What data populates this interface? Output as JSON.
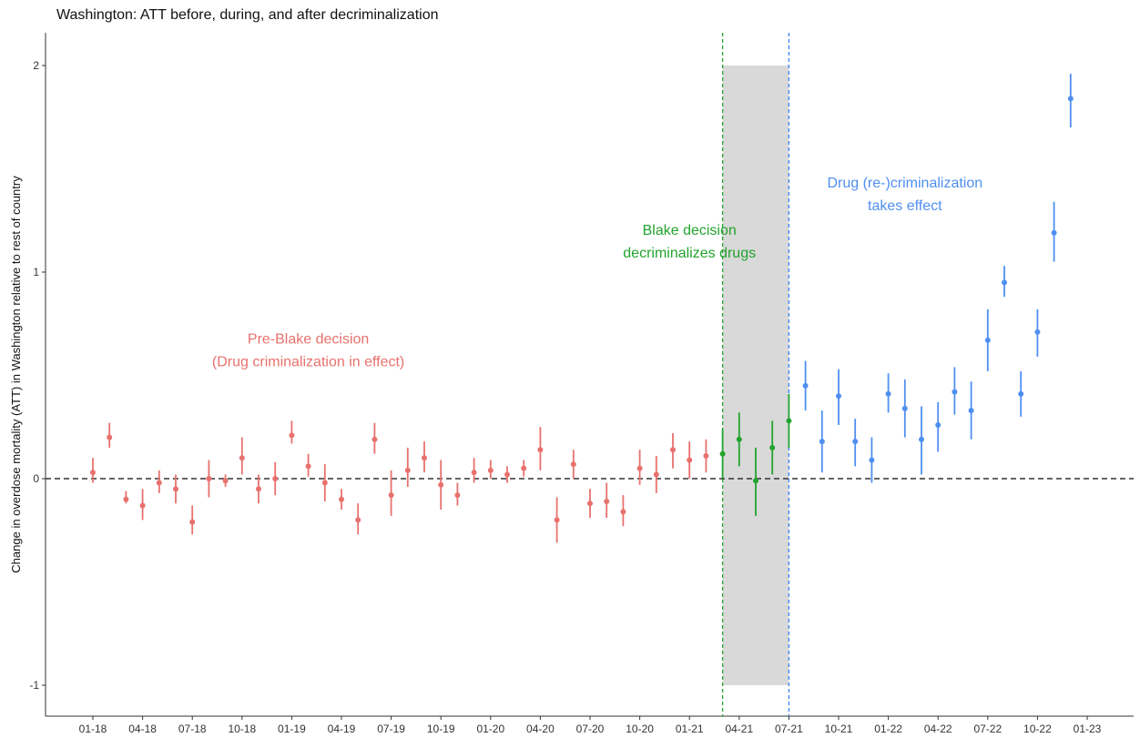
{
  "chart_data": {
    "type": "scatter",
    "title": "Washington: ATT before, during, and after decriminalization",
    "xlabel": "",
    "ylabel": "Change in overdose mortality (ATT) in Washington relative to rest of country",
    "ylim": [
      -1.15,
      2.15
    ],
    "yticks": [
      -1,
      0,
      1,
      2
    ],
    "grid": false,
    "legend": "none",
    "x_tick_labels": [
      "01-18",
      "04-18",
      "07-18",
      "10-18",
      "01-19",
      "04-19",
      "07-19",
      "10-19",
      "01-20",
      "04-20",
      "07-20",
      "10-20",
      "01-21",
      "04-21",
      "07-21",
      "10-21",
      "01-22",
      "04-22",
      "07-22",
      "10-22",
      "01-23"
    ],
    "reference_line": {
      "y": 0,
      "style": "dashed",
      "color": "#333333"
    },
    "shaded_region": {
      "from": "03-21",
      "to": "07-21",
      "ymin": -1,
      "ymax": 2,
      "color": "#d9d9d9"
    },
    "vlines": [
      {
        "x": "03-21",
        "color": "#22a32e",
        "style": "dashed"
      },
      {
        "x": "07-21",
        "color": "#3b82f6",
        "style": "dashed"
      }
    ],
    "annotations": [
      {
        "lines": [
          "Pre-Blake decision",
          "(Drug criminalization in effect)"
        ],
        "color": "#e8716d",
        "x": "02-19",
        "y": 0.655
      },
      {
        "lines": [
          "Blake decision",
          "decriminalizes drugs"
        ],
        "color": "#22a32e",
        "x": "01-21",
        "y": 1.18
      },
      {
        "lines": [
          "Drug (re-)criminalization",
          "takes effect"
        ],
        "color": "#4f8ff0",
        "x": "02-22",
        "y": 1.41
      }
    ],
    "series": [
      {
        "color": "#e8716d",
        "x": [
          "01-18",
          "02-18",
          "03-18",
          "04-18",
          "05-18",
          "06-18",
          "07-18",
          "08-18",
          "09-18",
          "10-18",
          "11-18",
          "12-18",
          "01-19",
          "02-19",
          "03-19",
          "04-19",
          "05-19",
          "06-19",
          "07-19",
          "08-19",
          "09-19",
          "10-19",
          "11-19",
          "12-19",
          "01-20",
          "02-20",
          "03-20",
          "04-20",
          "05-20",
          "06-20",
          "07-20",
          "08-20",
          "09-20",
          "10-20",
          "11-20",
          "12-20",
          "01-21",
          "02-21"
        ],
        "y": [
          0.03,
          0.2,
          -0.1,
          -0.13,
          -0.02,
          -0.05,
          -0.21,
          0.0,
          -0.01,
          0.1,
          -0.05,
          0.0,
          0.21,
          0.06,
          -0.02,
          -0.1,
          -0.2,
          0.19,
          -0.08,
          0.04,
          0.1,
          -0.03,
          -0.08,
          0.03,
          0.04,
          0.02,
          0.05,
          0.14,
          -0.2,
          0.07,
          -0.12,
          -0.11,
          -0.16,
          0.05,
          0.02,
          0.14,
          0.09,
          0.11
        ],
        "lower": [
          -0.02,
          0.15,
          -0.12,
          -0.2,
          -0.07,
          -0.12,
          -0.27,
          -0.09,
          -0.04,
          0.02,
          -0.12,
          -0.08,
          0.17,
          0.01,
          -0.11,
          -0.15,
          -0.27,
          0.12,
          -0.18,
          -0.04,
          0.03,
          -0.15,
          -0.13,
          -0.02,
          0.0,
          -0.02,
          0.01,
          0.04,
          -0.31,
          0.0,
          -0.19,
          -0.19,
          -0.23,
          -0.03,
          -0.07,
          0.05,
          0.0,
          0.03
        ],
        "upper": [
          0.1,
          0.27,
          -0.06,
          -0.05,
          0.04,
          0.02,
          -0.13,
          0.09,
          0.02,
          0.2,
          0.02,
          0.08,
          0.28,
          0.12,
          0.07,
          -0.05,
          -0.12,
          0.27,
          0.04,
          0.15,
          0.18,
          0.09,
          -0.02,
          0.1,
          0.09,
          0.06,
          0.09,
          0.25,
          -0.09,
          0.14,
          -0.05,
          -0.02,
          -0.08,
          0.14,
          0.11,
          0.22,
          0.18,
          0.19
        ]
      },
      {
        "color": "#22a32e",
        "x": [
          "03-21",
          "04-21",
          "05-21",
          "06-21",
          "07-21"
        ],
        "y": [
          0.12,
          0.19,
          -0.01,
          0.15,
          0.28
        ],
        "lower": [
          0.0,
          0.06,
          -0.18,
          0.02,
          0.15
        ],
        "upper": [
          0.24,
          0.32,
          0.15,
          0.28,
          0.41
        ]
      },
      {
        "color": "#4f8ff0",
        "x": [
          "08-21",
          "09-21",
          "10-21",
          "11-21",
          "12-21",
          "01-22",
          "02-22",
          "03-22",
          "04-22",
          "05-22",
          "06-22",
          "07-22",
          "08-22",
          "09-22",
          "10-22",
          "11-22",
          "12-22"
        ],
        "y": [
          0.45,
          0.18,
          0.4,
          0.18,
          0.09,
          0.41,
          0.34,
          0.19,
          0.26,
          0.42,
          0.33,
          0.67,
          0.95,
          0.41,
          0.71,
          1.19,
          1.84
        ],
        "lower": [
          0.33,
          0.03,
          0.26,
          0.06,
          -0.02,
          0.32,
          0.2,
          0.02,
          0.13,
          0.31,
          0.19,
          0.52,
          0.88,
          0.3,
          0.59,
          1.05,
          1.7
        ],
        "upper": [
          0.57,
          0.33,
          0.53,
          0.29,
          0.2,
          0.51,
          0.48,
          0.35,
          0.37,
          0.54,
          0.47,
          0.82,
          1.03,
          0.52,
          0.82,
          1.34,
          1.96
        ]
      }
    ]
  }
}
